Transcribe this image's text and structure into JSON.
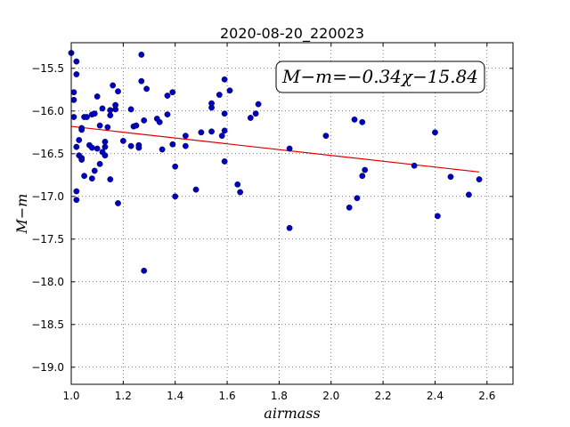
{
  "chart_data": {
    "type": "scatter",
    "title": "2020-08-20_220023",
    "xlabel": "airmass",
    "ylabel": "M−m",
    "xlim": [
      1.0,
      2.7
    ],
    "ylim": [
      -19.2,
      -15.2
    ],
    "y_inverted": true,
    "grid": true,
    "x_ticks": [
      1.0,
      1.2,
      1.4,
      1.6,
      1.8,
      2.0,
      2.2,
      2.4,
      2.6
    ],
    "x_tick_labels": [
      "1.0",
      "1.2",
      "1.4",
      "1.6",
      "1.8",
      "2.0",
      "2.2",
      "2.4",
      "2.6"
    ],
    "y_ticks": [
      -15.5,
      -16.0,
      -16.5,
      -17.0,
      -17.5,
      -18.0,
      -18.5,
      -19.0
    ],
    "y_tick_labels": [
      "−15.5",
      "−16.0",
      "−16.5",
      "−17.0",
      "−17.5",
      "−18.0",
      "−18.5",
      "−19.0"
    ],
    "annotation": "M−m=−0.34χ−15.84",
    "fit": {
      "slope": -0.34,
      "intercept": -15.84,
      "x_range": [
        1.0,
        2.57
      ],
      "color": "#e00000"
    },
    "point_color": "#0000bf",
    "points": [
      [
        1.0,
        -15.32
      ],
      [
        1.01,
        -15.78
      ],
      [
        1.01,
        -15.87
      ],
      [
        1.01,
        -16.07
      ],
      [
        1.02,
        -15.42
      ],
      [
        1.02,
        -15.57
      ],
      [
        1.02,
        -16.42
      ],
      [
        1.02,
        -16.94
      ],
      [
        1.02,
        -17.04
      ],
      [
        1.03,
        -16.34
      ],
      [
        1.03,
        -16.52
      ],
      [
        1.04,
        -16.55
      ],
      [
        1.04,
        -16.57
      ],
      [
        1.04,
        -16.2
      ],
      [
        1.04,
        -16.22
      ],
      [
        1.05,
        -16.76
      ],
      [
        1.05,
        -16.07
      ],
      [
        1.06,
        -16.07
      ],
      [
        1.07,
        -16.4
      ],
      [
        1.08,
        -16.04
      ],
      [
        1.08,
        -16.43
      ],
      [
        1.08,
        -16.79
      ],
      [
        1.09,
        -16.7
      ],
      [
        1.09,
        -16.03
      ],
      [
        1.1,
        -15.83
      ],
      [
        1.1,
        -16.44
      ],
      [
        1.11,
        -16.62
      ],
      [
        1.11,
        -16.17
      ],
      [
        1.12,
        -16.48
      ],
      [
        1.12,
        -15.97
      ],
      [
        1.13,
        -16.36
      ],
      [
        1.13,
        -16.42
      ],
      [
        1.13,
        -16.52
      ],
      [
        1.14,
        -16.19
      ],
      [
        1.15,
        -16.05
      ],
      [
        1.15,
        -15.99
      ],
      [
        1.15,
        -16.8
      ],
      [
        1.16,
        -15.7
      ],
      [
        1.17,
        -15.98
      ],
      [
        1.17,
        -15.93
      ],
      [
        1.18,
        -17.08
      ],
      [
        1.18,
        -15.77
      ],
      [
        1.2,
        -16.35
      ],
      [
        1.23,
        -16.41
      ],
      [
        1.23,
        -15.98
      ],
      [
        1.24,
        -16.18
      ],
      [
        1.25,
        -16.17
      ],
      [
        1.26,
        -16.4
      ],
      [
        1.26,
        -16.43
      ],
      [
        1.27,
        -15.34
      ],
      [
        1.27,
        -15.65
      ],
      [
        1.28,
        -16.11
      ],
      [
        1.28,
        -17.87
      ],
      [
        1.29,
        -15.74
      ],
      [
        1.33,
        -16.09
      ],
      [
        1.34,
        -16.13
      ],
      [
        1.35,
        -16.45
      ],
      [
        1.37,
        -15.82
      ],
      [
        1.37,
        -16.04
      ],
      [
        1.39,
        -15.78
      ],
      [
        1.39,
        -16.39
      ],
      [
        1.4,
        -17.0
      ],
      [
        1.4,
        -16.65
      ],
      [
        1.44,
        -16.41
      ],
      [
        1.44,
        -16.29
      ],
      [
        1.48,
        -16.92
      ],
      [
        1.5,
        -16.25
      ],
      [
        1.54,
        -16.24
      ],
      [
        1.54,
        -15.91
      ],
      [
        1.54,
        -15.96
      ],
      [
        1.57,
        -15.81
      ],
      [
        1.58,
        -16.29
      ],
      [
        1.59,
        -16.03
      ],
      [
        1.59,
        -16.23
      ],
      [
        1.59,
        -15.63
      ],
      [
        1.59,
        -16.59
      ],
      [
        1.61,
        -15.76
      ],
      [
        1.64,
        -16.86
      ],
      [
        1.65,
        -16.95
      ],
      [
        1.69,
        -16.08
      ],
      [
        1.71,
        -16.03
      ],
      [
        1.72,
        -15.92
      ],
      [
        1.84,
        -17.37
      ],
      [
        1.84,
        -16.44
      ],
      [
        1.98,
        -16.29
      ],
      [
        2.07,
        -17.13
      ],
      [
        2.09,
        -16.1
      ],
      [
        2.1,
        -17.02
      ],
      [
        2.12,
        -16.13
      ],
      [
        2.12,
        -16.76
      ],
      [
        2.13,
        -16.69
      ],
      [
        2.32,
        -16.64
      ],
      [
        2.4,
        -16.25
      ],
      [
        2.41,
        -17.23
      ],
      [
        2.46,
        -16.77
      ],
      [
        2.53,
        -16.98
      ],
      [
        2.57,
        -16.8
      ]
    ]
  }
}
